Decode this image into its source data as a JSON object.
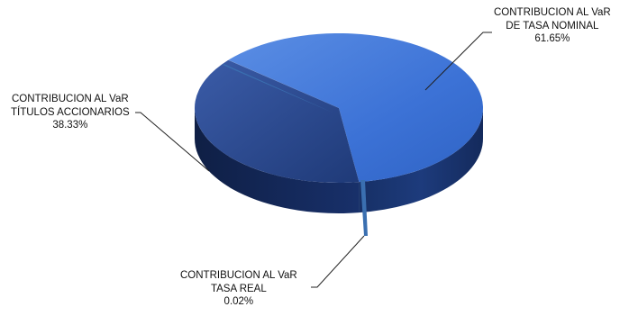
{
  "chart_data": {
    "type": "pie",
    "title": "",
    "slices": [
      {
        "label_line1": "CONTRIBUCION AL VaR",
        "label_line2": "DE TASA NOMINAL",
        "value": 61.65,
        "display": "61.65%",
        "color": "#3f74d8"
      },
      {
        "label_line1": "CONTRIBUCION AL VaR",
        "label_line2": "TÍTULOS ACCIONARIOS",
        "value": 38.33,
        "display": "38.33%",
        "color": "#2b4a92"
      },
      {
        "label_line1": "CONTRIBUCION AL VaR",
        "label_line2": "TASA REAL",
        "value": 0.02,
        "display": "0.02%",
        "color": "#3a6fb0"
      }
    ],
    "legend": "none",
    "style": "3d-exploded"
  }
}
